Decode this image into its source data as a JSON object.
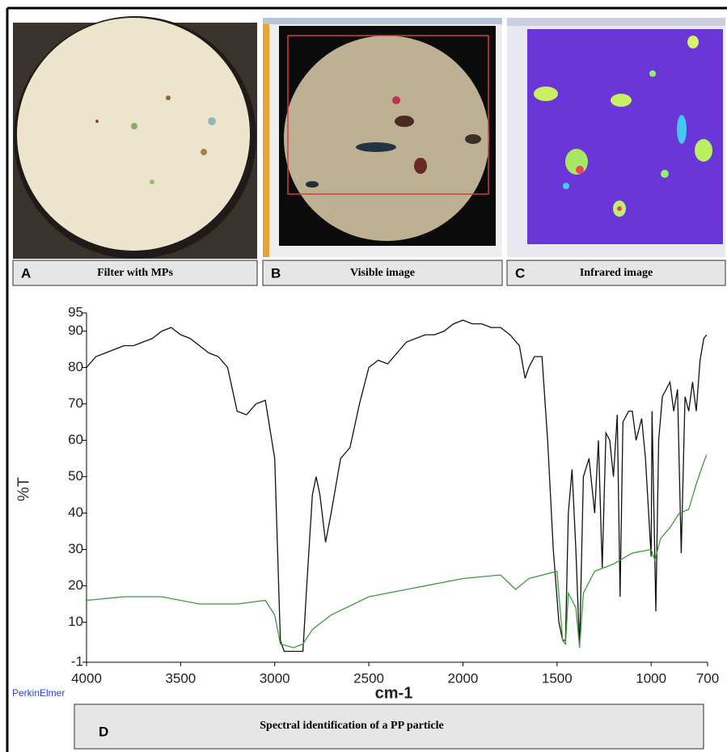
{
  "panels": [
    {
      "letter": "A",
      "caption": "Filter with MPs"
    },
    {
      "letter": "B",
      "caption": "Visible image"
    },
    {
      "letter": "C",
      "caption": "Infrared image"
    }
  ],
  "chart_data": {
    "type": "line",
    "panel_label": "D",
    "caption": "Spectral identification of a PP particle",
    "xlabel": "cm-1",
    "ylabel": "%T",
    "watermark": "PerkinElmer",
    "xlim": [
      4000,
      700
    ],
    "ylim": [
      -1,
      95
    ],
    "xticks": [
      4000,
      3500,
      3000,
      2500,
      2000,
      1500,
      1000,
      700
    ],
    "yticks": [
      -1,
      10,
      20,
      30,
      40,
      50,
      60,
      70,
      80,
      90,
      95
    ],
    "series": [
      {
        "color": "#111111",
        "x": [
          4000,
          3950,
          3900,
          3850,
          3800,
          3750,
          3700,
          3650,
          3600,
          3550,
          3500,
          3450,
          3400,
          3350,
          3300,
          3250,
          3200,
          3150,
          3100,
          3050,
          3000,
          2970,
          2950,
          2900,
          2850,
          2830,
          2800,
          2780,
          2760,
          2730,
          2700,
          2650,
          2600,
          2550,
          2500,
          2450,
          2400,
          2350,
          2300,
          2250,
          2200,
          2150,
          2100,
          2050,
          2000,
          1950,
          1900,
          1850,
          1800,
          1750,
          1700,
          1670,
          1650,
          1620,
          1580,
          1550,
          1520,
          1490,
          1470,
          1455,
          1440,
          1420,
          1400,
          1380,
          1360,
          1330,
          1300,
          1280,
          1260,
          1240,
          1220,
          1200,
          1180,
          1165,
          1150,
          1120,
          1100,
          1080,
          1050,
          1030,
          1000,
          995,
          975,
          960,
          940,
          900,
          880,
          860,
          840,
          820,
          800,
          780,
          760,
          740,
          720,
          705
        ],
        "values": [
          80,
          83,
          84,
          85,
          86,
          86,
          87,
          88,
          90,
          91,
          89,
          88,
          86,
          84,
          83,
          80,
          68,
          67,
          70,
          71,
          55,
          5,
          2,
          2,
          2,
          20,
          45,
          50,
          45,
          32,
          40,
          55,
          58,
          70,
          80,
          82,
          81,
          84,
          87,
          88,
          89,
          89,
          90,
          92,
          93,
          92,
          92,
          91,
          91,
          89,
          86,
          77,
          80,
          83,
          83,
          60,
          30,
          10,
          5,
          5,
          40,
          52,
          30,
          3,
          50,
          55,
          40,
          60,
          25,
          62,
          60,
          50,
          67,
          17,
          65,
          68,
          68,
          60,
          66,
          55,
          28,
          68,
          13,
          60,
          72,
          76,
          68,
          74,
          29,
          72,
          68,
          76,
          68,
          82,
          88,
          89
        ]
      },
      {
        "color": "#3c9a3c",
        "x": [
          4000,
          3800,
          3600,
          3400,
          3200,
          3050,
          3000,
          2970,
          2900,
          2850,
          2800,
          2700,
          2500,
          2300,
          2000,
          1800,
          1720,
          1650,
          1500,
          1470,
          1455,
          1440,
          1400,
          1380,
          1360,
          1300,
          1200,
          1100,
          1000,
          980,
          950,
          900,
          850,
          800,
          760,
          720,
          705
        ],
        "values": [
          16,
          17,
          17,
          15,
          15,
          16,
          12,
          4,
          3,
          4,
          8,
          12,
          17,
          19,
          22,
          23,
          19,
          22,
          24,
          5,
          4,
          18,
          14,
          3,
          18,
          24,
          26,
          29,
          30,
          27,
          33,
          36,
          40,
          41,
          48,
          54,
          56
        ]
      }
    ]
  }
}
